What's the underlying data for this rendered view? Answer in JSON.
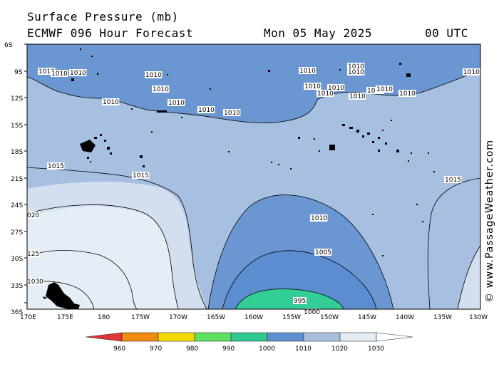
{
  "header": {
    "title": "Surface Pressure (mb)",
    "model": "ECMWF 096 Hour Forecast",
    "date": "Mon 05 May 2025",
    "time": "00 UTC"
  },
  "credit": "© www.PassageWeather.com",
  "axes": {
    "lat_labels": [
      "6S",
      "9S",
      "12S",
      "15S",
      "18S",
      "21S",
      "24S",
      "27S",
      "30S",
      "33S",
      "36S"
    ],
    "lon_labels": [
      "170E",
      "175E",
      "180",
      "175W",
      "170W",
      "165W",
      "160W",
      "155W",
      "150W",
      "145W",
      "140W",
      "135W",
      "130W"
    ]
  },
  "isobar_labels": [
    {
      "text": "1010"
    },
    {
      "text": "1010"
    },
    {
      "text": "1010"
    },
    {
      "text": "1010"
    },
    {
      "text": "1010"
    },
    {
      "text": "1010"
    },
    {
      "text": "1010"
    },
    {
      "text": "1010"
    },
    {
      "text": "1010"
    },
    {
      "text": "1010"
    },
    {
      "text": "1010"
    },
    {
      "text": "1010"
    },
    {
      "text": "1010"
    },
    {
      "text": "1010"
    },
    {
      "text": "1010"
    },
    {
      "text": "1010"
    },
    {
      "text": "1010"
    },
    {
      "text": "1010"
    },
    {
      "text": "1010"
    },
    {
      "text": "1010"
    },
    {
      "text": "1015"
    },
    {
      "text": "1015"
    },
    {
      "text": "1015"
    },
    {
      "text": "1010"
    },
    {
      "text": "1005"
    },
    {
      "text": "1000"
    },
    {
      "text": "995"
    },
    {
      "text": "020"
    },
    {
      "text": "125"
    },
    {
      "text": "1030"
    }
  ],
  "legend": {
    "labels": [
      "960",
      "970",
      "980",
      "990",
      "1000",
      "1010",
      "1020",
      "1030"
    ],
    "colors": [
      "#e0353a",
      "#f08a10",
      "#f5d800",
      "#5fe060",
      "#30c890",
      "#5f8fd0",
      "#a8c0e0",
      "#e4ecf4",
      "#ffffff"
    ]
  },
  "colors": {
    "p1005_1010": "#6a96d2",
    "p1010_1015": "#a7bfe0",
    "p1020_1030": "#e5edf6",
    "p1000_1005": "#5b8ed0",
    "p995_1000": "#33cd96"
  }
}
